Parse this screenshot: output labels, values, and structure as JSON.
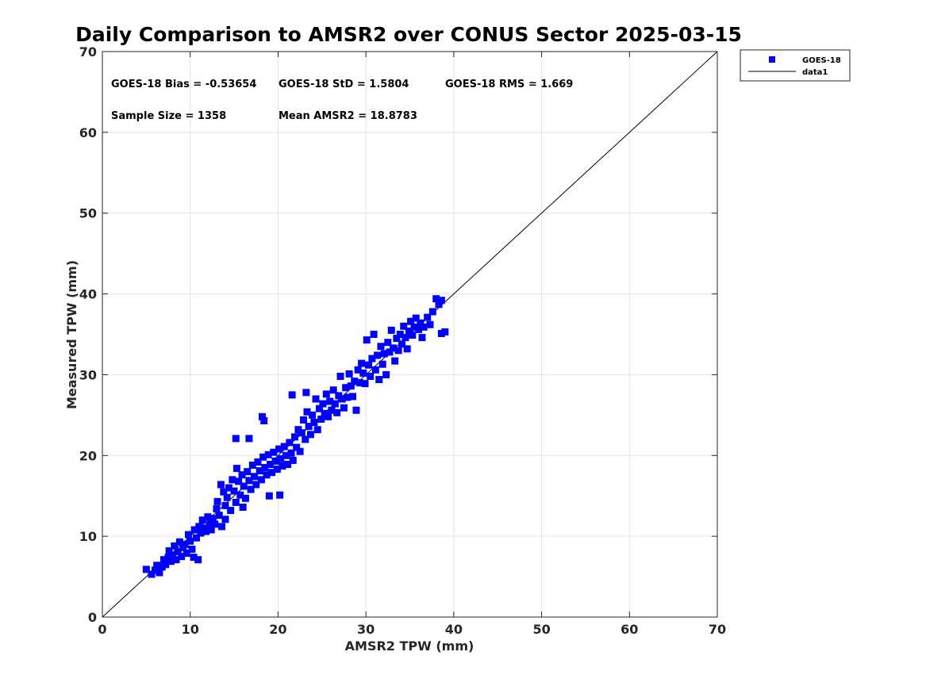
{
  "chart_data": {
    "type": "scatter",
    "title": "Daily Comparison to AMSR2 over CONUS Sector 2025-03-15",
    "xlabel": "AMSR2 TPW (mm)",
    "ylabel": "Measured TPW (mm)",
    "xlim": [
      0,
      70
    ],
    "ylim": [
      0,
      70
    ],
    "xticks": [
      0,
      10,
      20,
      30,
      40,
      50,
      60,
      70
    ],
    "yticks": [
      0,
      10,
      20,
      30,
      40,
      50,
      60,
      70
    ],
    "grid": true,
    "legend_position": "outside-top-right",
    "annotations": [
      {
        "text": "GOES-18 Bias = -0.53654"
      },
      {
        "text": "GOES-18 StD = 1.5804"
      },
      {
        "text": "GOES-18 RMS = 1.669"
      },
      {
        "text": "Sample Size = 1358"
      },
      {
        "text": "Mean AMSR2 = 18.8783"
      }
    ],
    "series": [
      {
        "name": "GOES-18",
        "kind": "scatter",
        "marker": "square",
        "color": "#0000ff",
        "points": [
          [
            5.0,
            5.9
          ],
          [
            5.6,
            5.3
          ],
          [
            6.0,
            5.8
          ],
          [
            6.2,
            6.4
          ],
          [
            6.5,
            5.5
          ],
          [
            6.8,
            6.2
          ],
          [
            7.0,
            7.1
          ],
          [
            7.2,
            6.5
          ],
          [
            7.5,
            7.4
          ],
          [
            7.6,
            8.2
          ],
          [
            7.8,
            6.9
          ],
          [
            8.0,
            7.6
          ],
          [
            8.2,
            8.8
          ],
          [
            8.4,
            7.1
          ],
          [
            8.6,
            8.1
          ],
          [
            8.8,
            9.3
          ],
          [
            9.0,
            7.5
          ],
          [
            9.2,
            8.6
          ],
          [
            9.4,
            9.0
          ],
          [
            9.6,
            7.9
          ],
          [
            9.8,
            10.2
          ],
          [
            10.0,
            9.4
          ],
          [
            10.2,
            8.4
          ],
          [
            10.4,
            7.4
          ],
          [
            10.5,
            10.8
          ],
          [
            10.7,
            9.8
          ],
          [
            10.9,
            7.1
          ],
          [
            11.0,
            11.2
          ],
          [
            11.2,
            10.4
          ],
          [
            11.4,
            12.0
          ],
          [
            11.6,
            11.0
          ],
          [
            11.8,
            10.6
          ],
          [
            12.0,
            12.4
          ],
          [
            12.2,
            11.3
          ],
          [
            12.4,
            10.8
          ],
          [
            12.6,
            12.2
          ],
          [
            12.8,
            11.5
          ],
          [
            13.0,
            13.4
          ],
          [
            13.1,
            14.3
          ],
          [
            13.3,
            12.6
          ],
          [
            13.5,
            16.4
          ],
          [
            13.6,
            11.2
          ],
          [
            13.8,
            15.5
          ],
          [
            14.0,
            13.8
          ],
          [
            14.2,
            14.8
          ],
          [
            14.4,
            16.0
          ],
          [
            14.6,
            13.2
          ],
          [
            14.8,
            17.0
          ],
          [
            15.0,
            15.6
          ],
          [
            15.2,
            14.2
          ],
          [
            15.3,
            18.4
          ],
          [
            15.5,
            16.8
          ],
          [
            15.7,
            15.1
          ],
          [
            15.9,
            17.6
          ],
          [
            16.1,
            16.2
          ],
          [
            16.3,
            14.7
          ],
          [
            16.5,
            18.0
          ],
          [
            16.7,
            16.9
          ],
          [
            16.9,
            15.8
          ],
          [
            17.1,
            18.8
          ],
          [
            17.3,
            17.4
          ],
          [
            17.5,
            16.4
          ],
          [
            17.7,
            19.2
          ],
          [
            17.9,
            18.1
          ],
          [
            18.1,
            17.0
          ],
          [
            18.3,
            19.8
          ],
          [
            18.5,
            18.5
          ],
          [
            18.7,
            17.6
          ],
          [
            18.9,
            20.1
          ],
          [
            19.0,
            15.0
          ],
          [
            19.1,
            18.9
          ],
          [
            19.3,
            17.9
          ],
          [
            19.5,
            20.4
          ],
          [
            19.7,
            19.3
          ],
          [
            19.9,
            18.3
          ],
          [
            20.1,
            20.8
          ],
          [
            20.3,
            19.6
          ],
          [
            20.5,
            18.7
          ],
          [
            20.7,
            21.1
          ],
          [
            20.9,
            20.0
          ],
          [
            21.1,
            18.9
          ],
          [
            21.3,
            21.6
          ],
          [
            21.5,
            20.3
          ],
          [
            21.7,
            19.4
          ],
          [
            21.9,
            22.3
          ],
          [
            22.1,
            21.0
          ],
          [
            22.3,
            23.2
          ],
          [
            22.5,
            20.5
          ],
          [
            22.7,
            22.8
          ],
          [
            22.9,
            24.4
          ],
          [
            23.1,
            22.0
          ],
          [
            23.3,
            25.4
          ],
          [
            23.5,
            23.6
          ],
          [
            23.7,
            22.6
          ],
          [
            23.9,
            25.0
          ],
          [
            24.1,
            24.1
          ],
          [
            24.3,
            27.0
          ],
          [
            24.5,
            23.2
          ],
          [
            24.7,
            25.8
          ],
          [
            24.9,
            24.5
          ],
          [
            25.1,
            26.4
          ],
          [
            25.3,
            25.2
          ],
          [
            25.5,
            27.6
          ],
          [
            25.7,
            24.8
          ],
          [
            25.9,
            26.7
          ],
          [
            26.1,
            25.6
          ],
          [
            26.3,
            28.1
          ],
          [
            26.5,
            26.4
          ],
          [
            26.7,
            25.3
          ],
          [
            26.9,
            27.4
          ],
          [
            27.1,
            29.8
          ],
          [
            27.3,
            27.0
          ],
          [
            27.5,
            25.9
          ],
          [
            27.7,
            28.4
          ],
          [
            27.9,
            27.2
          ],
          [
            28.1,
            30.1
          ],
          [
            28.3,
            28.6
          ],
          [
            28.5,
            27.3
          ],
          [
            28.7,
            29.2
          ],
          [
            28.9,
            25.6
          ],
          [
            29.1,
            30.6
          ],
          [
            29.3,
            29.0
          ],
          [
            29.5,
            31.4
          ],
          [
            29.7,
            30.2
          ],
          [
            29.9,
            28.9
          ],
          [
            30.1,
            34.3
          ],
          [
            30.3,
            31.2
          ],
          [
            30.5,
            29.8
          ],
          [
            30.7,
            32.0
          ],
          [
            30.9,
            35.0
          ],
          [
            31.1,
            30.6
          ],
          [
            31.3,
            32.4
          ],
          [
            31.5,
            29.4
          ],
          [
            31.7,
            33.5
          ],
          [
            31.9,
            31.3
          ],
          [
            32.1,
            32.6
          ],
          [
            32.3,
            30.0
          ],
          [
            32.5,
            34.0
          ],
          [
            32.7,
            32.8
          ],
          [
            32.9,
            35.5
          ],
          [
            33.1,
            33.3
          ],
          [
            33.3,
            31.7
          ],
          [
            33.5,
            34.5
          ],
          [
            33.7,
            33.0
          ],
          [
            33.9,
            35.0
          ],
          [
            34.1,
            33.8
          ],
          [
            34.3,
            36.0
          ],
          [
            34.5,
            34.6
          ],
          [
            34.7,
            33.2
          ],
          [
            34.9,
            35.4
          ],
          [
            35.1,
            36.6
          ],
          [
            35.3,
            34.9
          ],
          [
            35.5,
            35.9
          ],
          [
            35.7,
            37.0
          ],
          [
            36.0,
            35.6
          ],
          [
            36.2,
            36.4
          ],
          [
            36.4,
            34.6
          ],
          [
            36.6,
            35.9
          ],
          [
            37.0,
            37.1
          ],
          [
            37.3,
            36.2
          ],
          [
            37.6,
            37.8
          ],
          [
            38.0,
            39.4
          ],
          [
            38.3,
            38.7
          ],
          [
            38.6,
            35.1
          ],
          [
            39.0,
            35.3
          ],
          [
            38.6,
            39.2
          ],
          [
            18.2,
            24.8
          ],
          [
            18.4,
            24.3
          ],
          [
            15.2,
            22.1
          ],
          [
            16.7,
            22.1
          ],
          [
            20.2,
            15.1
          ],
          [
            12.3,
            11.6
          ],
          [
            14.0,
            12.1
          ],
          [
            16.0,
            13.6
          ],
          [
            21.6,
            27.5
          ],
          [
            23.2,
            27.8
          ]
        ]
      },
      {
        "name": "data1",
        "kind": "line",
        "color": "#000000",
        "points": [
          [
            0,
            0
          ],
          [
            70,
            70
          ]
        ]
      }
    ]
  }
}
